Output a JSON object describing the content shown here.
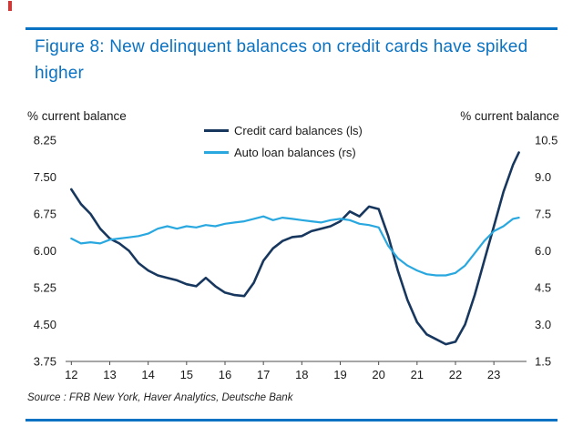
{
  "figure": {
    "title": "Figure 8: New delinquent balances on credit cards have spiked higher",
    "source": "Source : FRB New York, Haver Analytics, Deutsche Bank"
  },
  "colors": {
    "accent": "#0a72c2",
    "red_mark": "#e03131",
    "credit_card_line": "#17375e",
    "auto_loan_line": "#29a8e0"
  },
  "chart_data": {
    "type": "line",
    "title": "Figure 8: New delinquent balances on credit cards have spiked higher",
    "grid": false,
    "legend_position": "top-center",
    "left_axis": {
      "label": "% current balance",
      "range": [
        3.75,
        8.25
      ],
      "ticks": [
        8.25,
        7.5,
        6.75,
        6.0,
        5.25,
        4.5,
        3.75
      ],
      "decimals": 2
    },
    "right_axis": {
      "label": "% current balance",
      "range": [
        1.5,
        10.5
      ],
      "ticks": [
        10.5,
        9.0,
        7.5,
        6.0,
        4.5,
        3.0,
        1.5
      ],
      "decimals": 1
    },
    "x_axis": {
      "range": [
        11.85,
        23.85
      ],
      "ticks": [
        12,
        13,
        14,
        15,
        16,
        17,
        18,
        19,
        20,
        21,
        22,
        23
      ]
    },
    "x": [
      12,
      12.25,
      12.5,
      12.75,
      13,
      13.25,
      13.5,
      13.75,
      14,
      14.25,
      14.5,
      14.75,
      15,
      15.25,
      15.5,
      15.75,
      16,
      16.25,
      16.5,
      16.75,
      17,
      17.25,
      17.5,
      17.75,
      18,
      18.25,
      18.5,
      18.75,
      19,
      19.25,
      19.5,
      19.75,
      20,
      20.25,
      20.5,
      20.75,
      21,
      21.25,
      21.5,
      21.75,
      22,
      22.25,
      22.5,
      22.75,
      23,
      23.25,
      23.5,
      23.65
    ],
    "series": [
      {
        "name": "Credit card balances (ls)",
        "axis": "left",
        "color": "#17375e",
        "values": [
          7.25,
          6.95,
          6.75,
          6.45,
          6.25,
          6.15,
          6.0,
          5.75,
          5.6,
          5.5,
          5.45,
          5.4,
          5.32,
          5.28,
          5.45,
          5.28,
          5.15,
          5.1,
          5.08,
          5.35,
          5.8,
          6.05,
          6.2,
          6.28,
          6.3,
          6.4,
          6.45,
          6.5,
          6.6,
          6.8,
          6.7,
          6.9,
          6.85,
          6.3,
          5.6,
          5.0,
          4.55,
          4.3,
          4.2,
          4.1,
          4.15,
          4.5,
          5.1,
          5.8,
          6.5,
          7.2,
          7.75,
          8.0
        ]
      },
      {
        "name": "Auto loan balances (rs)",
        "axis": "right",
        "color": "#29a8e0",
        "values": [
          6.5,
          6.3,
          6.35,
          6.3,
          6.45,
          6.5,
          6.55,
          6.6,
          6.7,
          6.9,
          7.0,
          6.9,
          7.0,
          6.95,
          7.05,
          7.0,
          7.1,
          7.15,
          7.2,
          7.3,
          7.4,
          7.25,
          7.35,
          7.3,
          7.25,
          7.2,
          7.15,
          7.25,
          7.3,
          7.25,
          7.1,
          7.05,
          6.95,
          6.2,
          5.7,
          5.4,
          5.2,
          5.05,
          5.0,
          5.0,
          5.1,
          5.4,
          5.9,
          6.4,
          6.8,
          7.0,
          7.3,
          7.35
        ]
      }
    ]
  }
}
